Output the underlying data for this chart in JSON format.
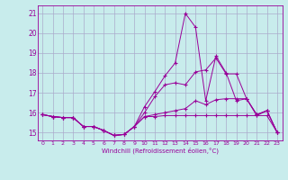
{
  "bg_color": "#c8ecec",
  "grid_color": "#aaaacc",
  "line_color": "#990099",
  "xlabel": "Windchill (Refroidissement éolien,°C)",
  "ylabel_ticks": [
    15,
    16,
    17,
    18,
    19,
    20,
    21
  ],
  "xlim": [
    -0.5,
    23.5
  ],
  "ylim": [
    14.6,
    21.4
  ],
  "x": [
    0,
    1,
    2,
    3,
    4,
    5,
    6,
    7,
    8,
    9,
    10,
    11,
    12,
    13,
    14,
    15,
    16,
    17,
    18,
    19,
    20,
    21,
    22,
    23
  ],
  "series1": [
    15.9,
    15.8,
    15.75,
    15.75,
    15.3,
    15.3,
    15.1,
    14.85,
    14.9,
    15.3,
    15.8,
    15.8,
    15.85,
    15.85,
    15.85,
    15.85,
    15.85,
    15.85,
    15.85,
    15.85,
    15.85,
    15.85,
    15.85,
    15.0
  ],
  "series2": [
    15.9,
    15.8,
    15.75,
    15.75,
    15.3,
    15.3,
    15.1,
    14.85,
    14.9,
    15.3,
    15.8,
    15.9,
    16.0,
    16.1,
    16.2,
    16.6,
    16.4,
    16.65,
    16.7,
    16.7,
    16.7,
    15.85,
    16.1,
    15.0
  ],
  "series3": [
    15.9,
    15.8,
    15.75,
    15.75,
    15.3,
    15.3,
    15.1,
    14.85,
    14.9,
    15.3,
    16.0,
    16.8,
    17.4,
    17.5,
    17.4,
    18.05,
    18.15,
    18.75,
    17.95,
    17.95,
    16.7,
    15.9,
    16.1,
    15.0
  ],
  "series4": [
    15.9,
    15.8,
    15.75,
    15.75,
    15.3,
    15.3,
    15.1,
    14.85,
    14.9,
    15.3,
    16.3,
    17.05,
    17.85,
    18.5,
    21.0,
    20.3,
    16.6,
    18.85,
    18.0,
    16.6,
    16.7,
    15.9,
    16.1,
    15.0
  ]
}
